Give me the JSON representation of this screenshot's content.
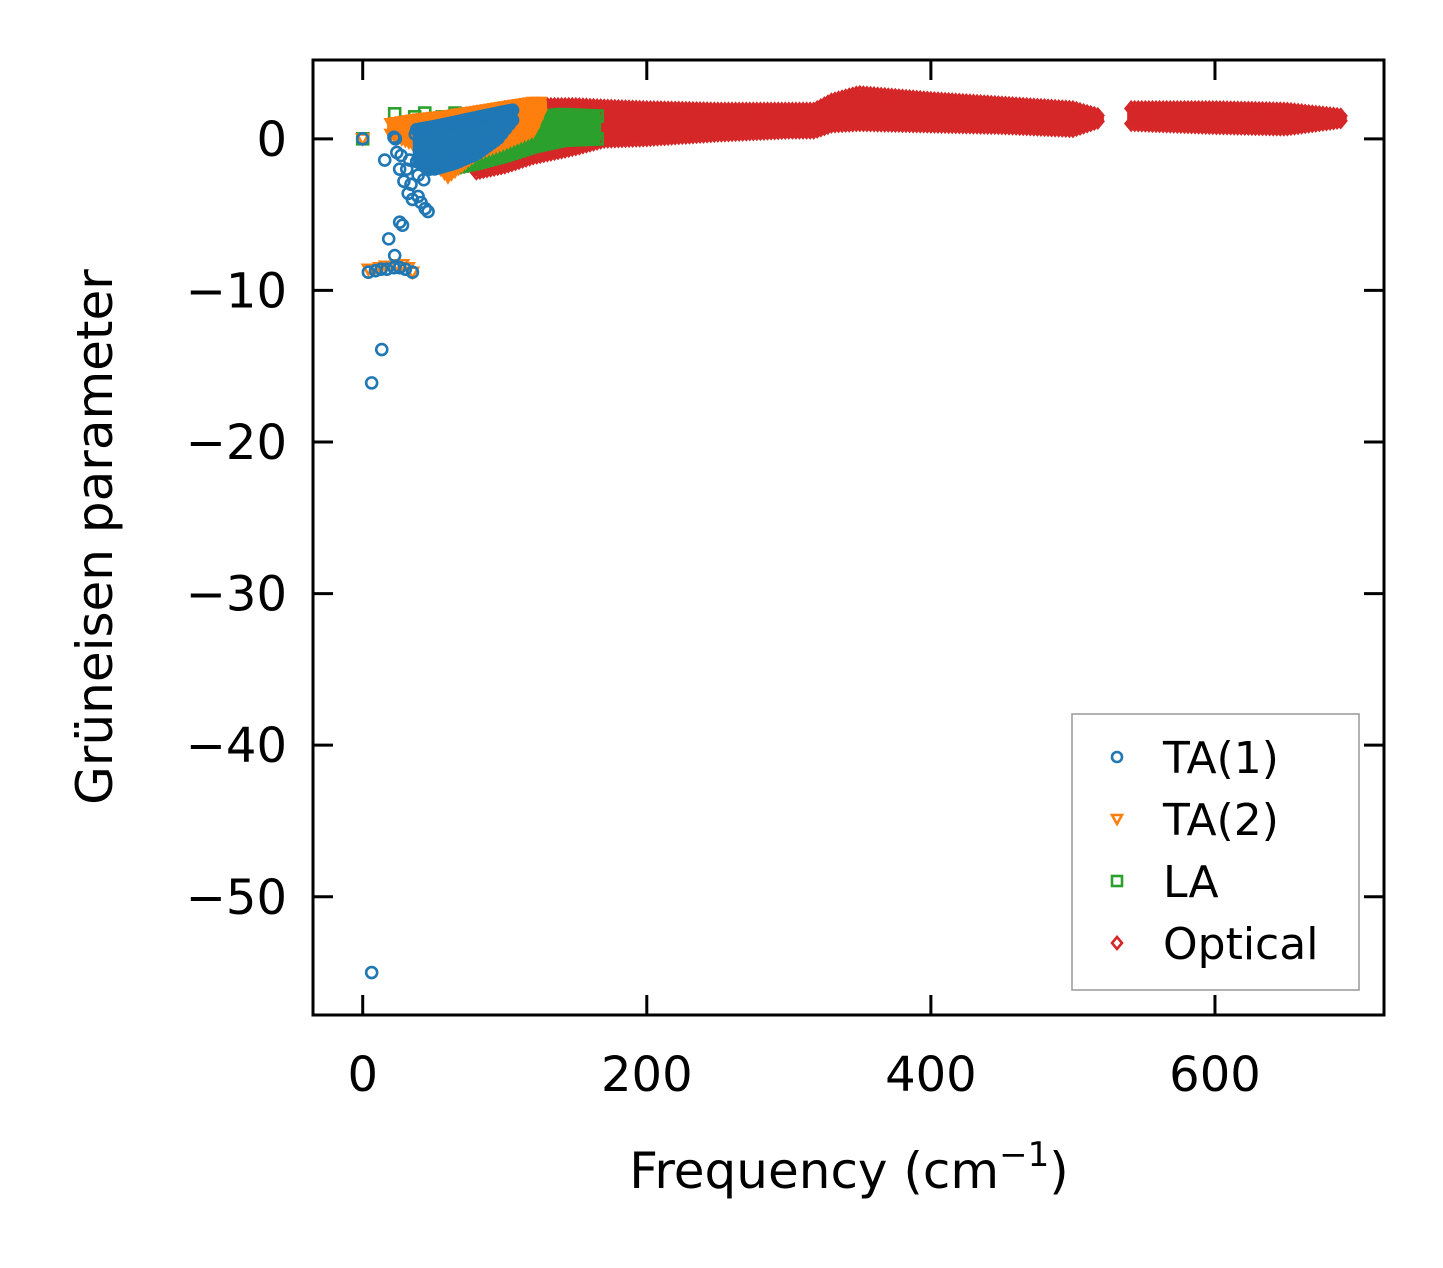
{
  "chart_data": {
    "type": "scatter",
    "title": "",
    "xlabel": "Frequency (cm",
    "xlabel_sup": "−1",
    "xlabel_end": ")",
    "ylabel": "Grüneisen parameter",
    "xlim": [
      -35,
      719
    ],
    "ylim": [
      -57.8,
      5.2
    ],
    "xticks": [
      0,
      200,
      400,
      600
    ],
    "xtick_labels": [
      "0",
      "200",
      "400",
      "600"
    ],
    "yticks": [
      0,
      -10,
      -20,
      -30,
      -40,
      -50
    ],
    "ytick_labels": [
      "0",
      "−10",
      "−20",
      "−30",
      "−40",
      "−50"
    ],
    "grid": false,
    "legend_position": "lower-right",
    "series": [
      {
        "name": "TA(1)",
        "marker": "circle",
        "color": "#1f77b4",
        "points": [
          [
            0,
            0
          ],
          [
            6.3,
            -55.0
          ],
          [
            6.3,
            -16.1
          ],
          [
            13.4,
            -13.9
          ],
          [
            18.3,
            -6.6
          ],
          [
            15.5,
            -1.4
          ],
          [
            22.5,
            -7.7
          ],
          [
            26,
            -5.5
          ],
          [
            28,
            -5.7
          ],
          [
            22,
            0.1
          ],
          [
            24,
            -0.9
          ],
          [
            26,
            -2.0
          ],
          [
            29,
            -2.8
          ],
          [
            32,
            -3.6
          ],
          [
            35,
            -4.0
          ],
          [
            39,
            -3.8
          ],
          [
            41,
            -4.2
          ],
          [
            44,
            -4.6
          ],
          [
            46,
            -4.8
          ],
          [
            31,
            -2.0
          ],
          [
            34,
            -3.0
          ],
          [
            39,
            -2.4
          ],
          [
            43,
            -2.7
          ],
          [
            47,
            -2.0
          ],
          [
            49,
            -1.4
          ],
          [
            23,
            0
          ],
          [
            27,
            -1.1
          ],
          [
            33,
            -1.4
          ],
          [
            37,
            0.3
          ],
          [
            4,
            -8.8
          ],
          [
            9,
            -8.7
          ],
          [
            13,
            -8.6
          ],
          [
            17,
            -8.6
          ],
          [
            22,
            -8.5
          ],
          [
            26,
            -8.5
          ],
          [
            30,
            -8.6
          ],
          [
            35,
            -8.8
          ]
        ],
        "band": [
          [
            38,
            -1.5,
            0.6
          ],
          [
            50,
            -2.0,
            0.8
          ],
          [
            65,
            -1.6,
            1.1
          ],
          [
            80,
            -1.0,
            1.4
          ],
          [
            95,
            0.0,
            1.7
          ],
          [
            106,
            1.3,
            1.9
          ]
        ]
      },
      {
        "name": "TA(2)",
        "marker": "triangle-down",
        "color": "#ff7f0e",
        "points": [
          [
            0,
            0
          ],
          [
            4,
            -8.6
          ],
          [
            8,
            -8.6
          ],
          [
            12,
            -8.5
          ],
          [
            16,
            -8.4
          ],
          [
            20,
            -8.4
          ],
          [
            24,
            -8.3
          ],
          [
            28,
            -8.3
          ],
          [
            32,
            -8.5
          ],
          [
            35,
            -8.8
          ]
        ],
        "band": [
          [
            20,
            0.3,
            1.0
          ],
          [
            40,
            -0.5,
            1.3
          ],
          [
            60,
            -2.5,
            1.5
          ],
          [
            80,
            -1.0,
            1.8
          ],
          [
            100,
            -0.3,
            2.1
          ],
          [
            120,
            0.5,
            2.4
          ],
          [
            127,
            2.0,
            2.4
          ]
        ]
      },
      {
        "name": "LA",
        "marker": "square",
        "color": "#2ca02c",
        "points": [
          [
            0,
            0
          ],
          [
            22.5,
            1.65
          ],
          [
            36.6,
            1.45
          ],
          [
            43.7,
            1.7
          ],
          [
            56,
            1.45
          ],
          [
            65,
            1.7
          ],
          [
            74,
            1.45
          ]
        ],
        "band": [
          [
            60,
            -2.0,
            -0.5
          ],
          [
            80,
            -1.6,
            0.3
          ],
          [
            100,
            -1.1,
            0.8
          ],
          [
            120,
            -0.5,
            1.4
          ],
          [
            140,
            -0.1,
            1.6
          ],
          [
            165,
            0.0,
            1.5
          ]
        ]
      },
      {
        "name": "Optical",
        "marker": "diamond",
        "color": "#d62728",
        "points": [],
        "band": [
          [
            80,
            -2.2,
            1.0
          ],
          [
            100,
            -1.8,
            2.0
          ],
          [
            120,
            -1.2,
            2.2
          ],
          [
            150,
            -0.6,
            2.2
          ],
          [
            170,
            -0.1,
            2.1
          ],
          [
            200,
            0.0,
            2.0
          ],
          [
            250,
            0.3,
            1.9
          ],
          [
            300,
            0.5,
            1.9
          ],
          [
            318,
            0.5,
            1.9
          ],
          [
            330,
            0.9,
            2.5
          ],
          [
            349,
            1.0,
            3.0
          ],
          [
            400,
            0.9,
            2.6
          ],
          [
            450,
            0.8,
            2.3
          ],
          [
            500,
            0.6,
            2.0
          ],
          [
            519,
            1.2,
            1.5
          ]
        ],
        "band2": [
          [
            541,
            1.0,
            2.0
          ],
          [
            600,
            0.8,
            2.0
          ],
          [
            650,
            0.7,
            1.9
          ],
          [
            690,
            1.2,
            1.5
          ]
        ]
      }
    ]
  }
}
